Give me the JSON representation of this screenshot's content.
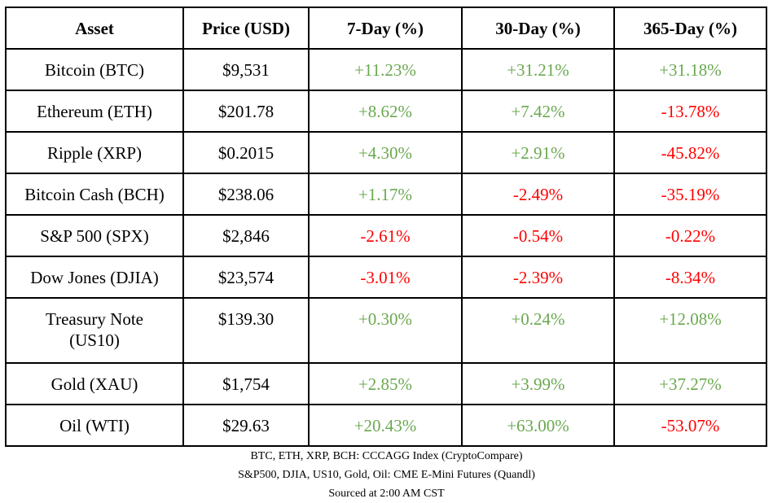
{
  "headers": [
    "Asset",
    "Price (USD)",
    "7-Day (%)",
    "30-Day (%)",
    "365-Day (%)"
  ],
  "colors": {
    "positive": "#6aa84f",
    "negative": "#ff0000"
  },
  "rows": [
    [
      "Bitcoin (BTC)",
      "$9,531",
      "+11.23%",
      "+31.21%",
      "+31.18%"
    ],
    [
      "Ethereum (ETH)",
      "$201.78",
      "+8.62%",
      "+7.42%",
      "-13.78%"
    ],
    [
      "Ripple (XRP)",
      "$0.2015",
      "+4.30%",
      "+2.91%",
      "-45.82%"
    ],
    [
      "Bitcoin Cash (BCH)",
      "$238.06",
      "+1.17%",
      "-2.49%",
      "-35.19%"
    ],
    [
      "S&P 500 (SPX)",
      "$2,846",
      "-2.61%",
      "-0.54%",
      "-0.22%"
    ],
    [
      "Dow Jones (DJIA)",
      "$23,574",
      "-3.01%",
      "-2.39%",
      "-8.34%"
    ],
    [
      "Treasury Note (US10)",
      "$139.30",
      "+0.30%",
      "+0.24%",
      "+12.08%"
    ],
    [
      "Gold (XAU)",
      "$1,754",
      "+2.85%",
      "+3.99%",
      "+37.27%"
    ],
    [
      "Oil (WTI)",
      "$29.63",
      "+20.43%",
      "+63.00%",
      "-53.07%"
    ]
  ],
  "footer": [
    "BTC, ETH, XRP, BCH: CCCAGG  Index (CryptoCompare)",
    "S&P500, DJIA, US10, Gold, Oil: CME E-Mini Futures (Quandl)",
    "Sourced at 2:00 AM CST"
  ]
}
